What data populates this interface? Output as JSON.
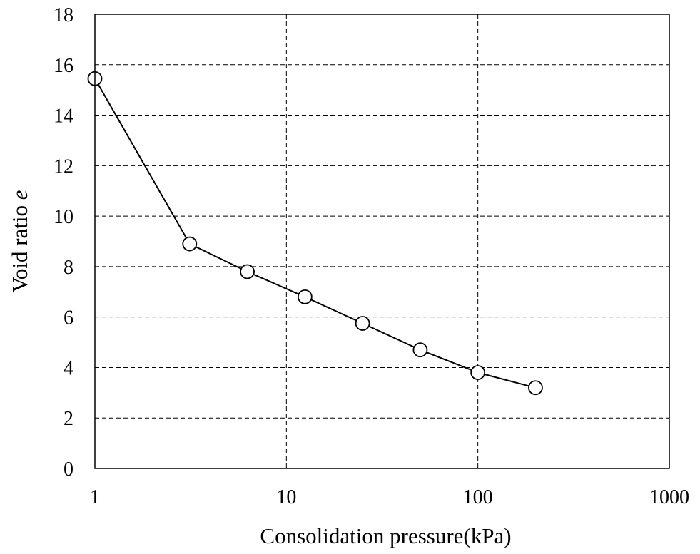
{
  "chart_data": {
    "type": "line",
    "title": "",
    "xlabel": "Consolidation pressure(kPa)",
    "ylabel": {
      "text": "Void ratio ",
      "variable": "e"
    },
    "x_scale": "log",
    "xlim": [
      1,
      1000
    ],
    "ylim": [
      0,
      18
    ],
    "x_ticks": [
      1,
      10,
      100,
      1000
    ],
    "x_tick_labels": [
      "1",
      "10",
      "100",
      "1000"
    ],
    "y_ticks": [
      0,
      2,
      4,
      6,
      8,
      10,
      12,
      14,
      16,
      18
    ],
    "y_tick_labels": [
      "0",
      "2",
      "4",
      "6",
      "8",
      "10",
      "12",
      "14",
      "16",
      "18"
    ],
    "grid": "dashed",
    "legend": "none",
    "marker": "open-circle",
    "line_color": "#000000",
    "series": [
      {
        "x": [
          1,
          3.125,
          6.25,
          12.5,
          25,
          50,
          100,
          200
        ],
        "y": [
          15.45,
          8.9,
          7.8,
          6.8,
          5.75,
          4.7,
          3.8,
          3.2
        ]
      }
    ]
  }
}
